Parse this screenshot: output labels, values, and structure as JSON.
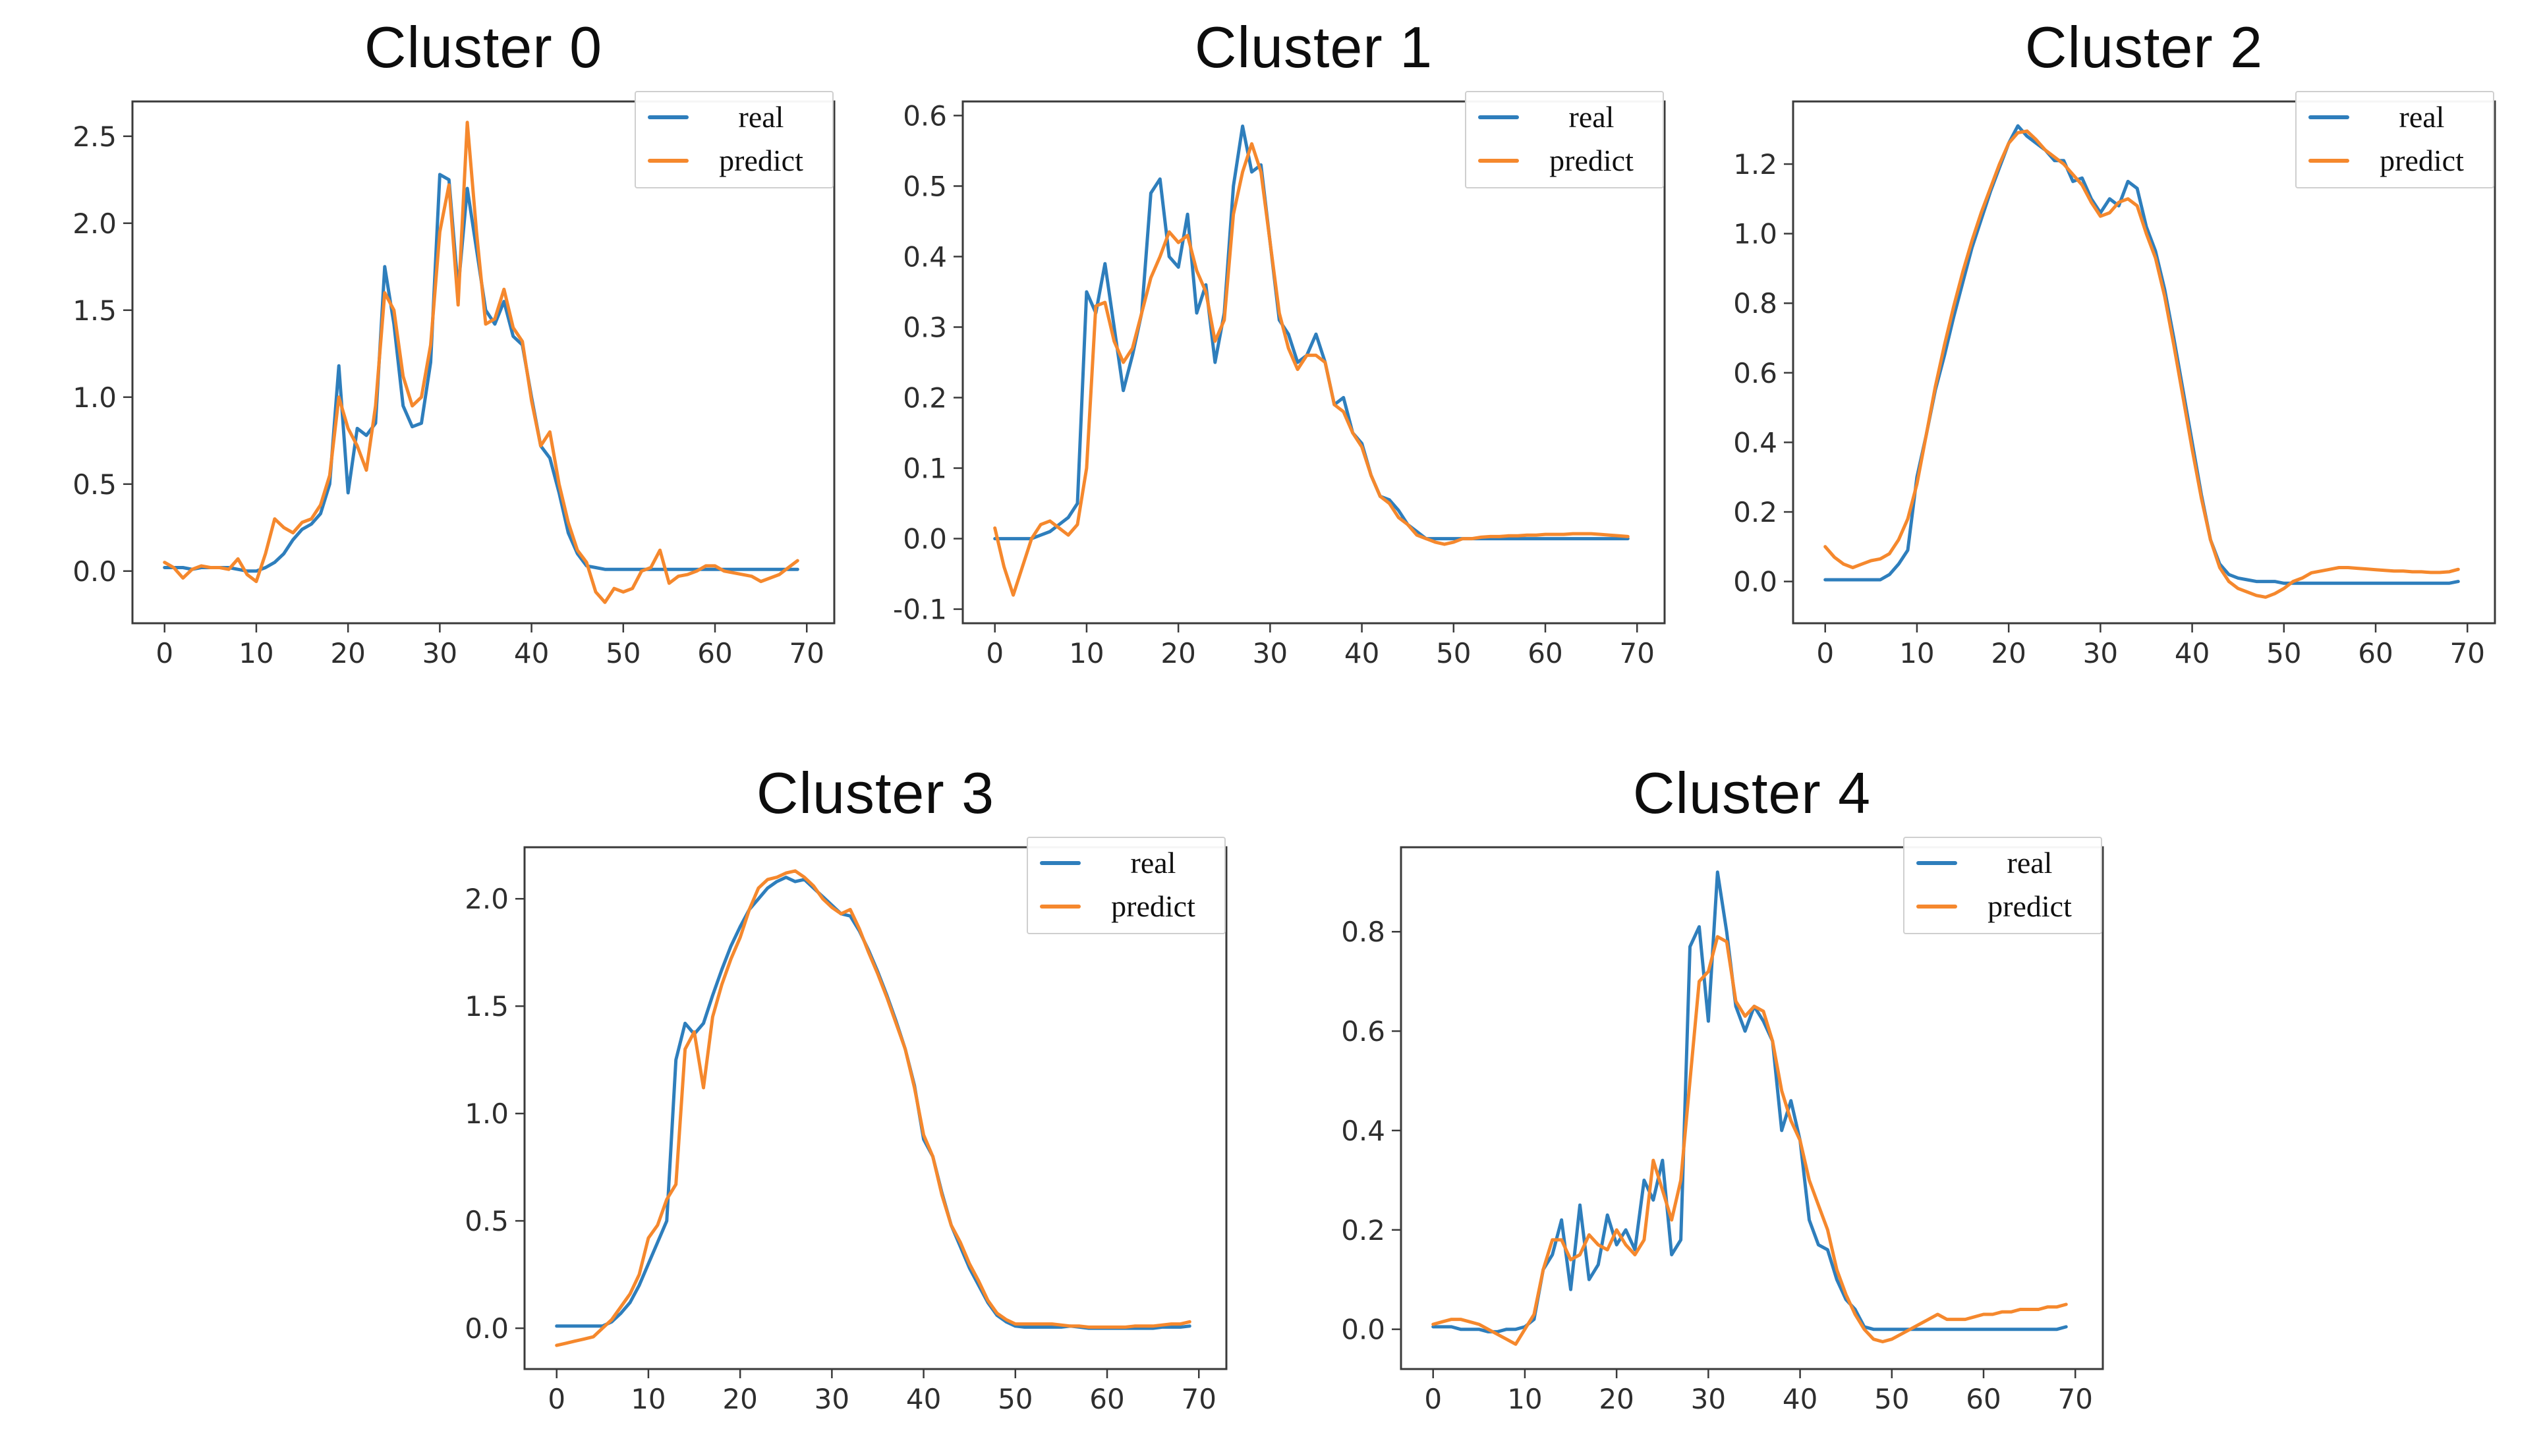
{
  "page": {
    "background": "#ffffff"
  },
  "colors": {
    "real": "#2e7ebc",
    "predict": "#f5882d",
    "axis": "#3a3a3a",
    "tick_text": "#2e2e2e"
  },
  "legend": {
    "position": "upper right",
    "entries": [
      "real",
      "predict"
    ]
  },
  "chart_data": [
    {
      "type": "line",
      "title": "Cluster 0",
      "xlabel": "",
      "ylabel": "",
      "xlim": [
        -3.5,
        73
      ],
      "ylim": [
        -0.3,
        2.7
      ],
      "xticks": [
        0,
        10,
        20,
        30,
        40,
        50,
        60,
        70
      ],
      "xtick_labels": [
        "0",
        "10",
        "20",
        "30",
        "40",
        "50",
        "60",
        "70"
      ],
      "yticks": [
        0.0,
        0.5,
        1.0,
        1.5,
        2.0,
        2.5
      ],
      "ytick_labels": [
        "0.0",
        "0.5",
        "1.0",
        "1.5",
        "2.0",
        "2.5"
      ],
      "grid": false,
      "series": [
        {
          "name": "real",
          "color": "#2e7ebc",
          "values": [
            0.02,
            0.02,
            0.02,
            0.01,
            0.02,
            0.02,
            0.02,
            0.02,
            0.01,
            0.0,
            0.0,
            0.02,
            0.05,
            0.1,
            0.18,
            0.24,
            0.27,
            0.33,
            0.5,
            1.18,
            0.45,
            0.82,
            0.78,
            0.85,
            1.75,
            1.42,
            0.95,
            0.83,
            0.85,
            1.2,
            2.28,
            2.25,
            1.62,
            2.2,
            1.85,
            1.5,
            1.42,
            1.55,
            1.35,
            1.3,
            1.0,
            0.72,
            0.65,
            0.45,
            0.22,
            0.1,
            0.03,
            0.02,
            0.01,
            0.01,
            0.01,
            0.01,
            0.01,
            0.01,
            0.01,
            0.01,
            0.01,
            0.01,
            0.01,
            0.01,
            0.01,
            0.01,
            0.01,
            0.01,
            0.01,
            0.01,
            0.01,
            0.01,
            0.01,
            0.01
          ]
        },
        {
          "name": "predict",
          "color": "#f5882d",
          "values": [
            0.05,
            0.02,
            -0.04,
            0.01,
            0.03,
            0.02,
            0.02,
            0.01,
            0.07,
            -0.02,
            -0.06,
            0.1,
            0.3,
            0.25,
            0.22,
            0.28,
            0.3,
            0.38,
            0.55,
            1.0,
            0.82,
            0.72,
            0.58,
            0.95,
            1.6,
            1.5,
            1.12,
            0.95,
            1.0,
            1.3,
            1.95,
            2.22,
            1.53,
            2.58,
            1.95,
            1.42,
            1.45,
            1.62,
            1.4,
            1.32,
            0.98,
            0.72,
            0.8,
            0.5,
            0.28,
            0.12,
            0.05,
            -0.12,
            -0.18,
            -0.1,
            -0.12,
            -0.1,
            0.0,
            0.02,
            0.12,
            -0.07,
            -0.03,
            -0.02,
            0.0,
            0.03,
            0.03,
            0.0,
            -0.01,
            -0.02,
            -0.03,
            -0.06,
            -0.04,
            -0.02,
            0.02,
            0.06
          ]
        }
      ]
    },
    {
      "type": "line",
      "title": "Cluster 1",
      "xlabel": "",
      "ylabel": "",
      "xlim": [
        -3.5,
        73
      ],
      "ylim": [
        -0.12,
        0.62
      ],
      "xticks": [
        0,
        10,
        20,
        30,
        40,
        50,
        60,
        70
      ],
      "xtick_labels": [
        "0",
        "10",
        "20",
        "30",
        "40",
        "50",
        "60",
        "70"
      ],
      "yticks": [
        -0.1,
        0.0,
        0.1,
        0.2,
        0.3,
        0.4,
        0.5,
        0.6
      ],
      "ytick_labels": [
        "-0.1",
        "0.0",
        "0.1",
        "0.2",
        "0.3",
        "0.4",
        "0.5",
        "0.6"
      ],
      "grid": false,
      "series": [
        {
          "name": "real",
          "color": "#2e7ebc",
          "values": [
            0.0,
            0.0,
            0.0,
            0.0,
            0.0,
            0.005,
            0.01,
            0.02,
            0.03,
            0.05,
            0.35,
            0.32,
            0.39,
            0.3,
            0.21,
            0.26,
            0.32,
            0.49,
            0.51,
            0.4,
            0.385,
            0.46,
            0.32,
            0.36,
            0.25,
            0.32,
            0.5,
            0.585,
            0.52,
            0.53,
            0.42,
            0.31,
            0.29,
            0.25,
            0.26,
            0.29,
            0.25,
            0.19,
            0.2,
            0.15,
            0.135,
            0.09,
            0.06,
            0.055,
            0.04,
            0.02,
            0.01,
            0.0,
            0.0,
            0.0,
            0.0,
            0.0,
            0.0,
            0.0,
            0.0,
            0.0,
            0.0,
            0.0,
            0.0,
            0.0,
            0.0,
            0.0,
            0.0,
            0.0,
            0.0,
            0.0,
            0.0,
            0.0,
            0.0,
            0.0
          ]
        },
        {
          "name": "predict",
          "color": "#f5882d",
          "values": [
            0.015,
            -0.04,
            -0.08,
            -0.04,
            0.0,
            0.02,
            0.025,
            0.015,
            0.005,
            0.02,
            0.1,
            0.33,
            0.335,
            0.28,
            0.25,
            0.27,
            0.32,
            0.37,
            0.4,
            0.435,
            0.42,
            0.43,
            0.38,
            0.35,
            0.28,
            0.31,
            0.46,
            0.52,
            0.56,
            0.52,
            0.42,
            0.32,
            0.27,
            0.24,
            0.26,
            0.26,
            0.25,
            0.19,
            0.18,
            0.15,
            0.13,
            0.09,
            0.06,
            0.05,
            0.03,
            0.02,
            0.005,
            0.0,
            -0.005,
            -0.008,
            -0.005,
            0.0,
            0.0,
            0.002,
            0.003,
            0.003,
            0.004,
            0.004,
            0.005,
            0.005,
            0.006,
            0.006,
            0.006,
            0.007,
            0.007,
            0.007,
            0.006,
            0.005,
            0.004,
            0.003
          ]
        }
      ]
    },
    {
      "type": "line",
      "title": "Cluster 2",
      "xlabel": "",
      "ylabel": "",
      "xlim": [
        -3.5,
        73
      ],
      "ylim": [
        -0.12,
        1.38
      ],
      "xticks": [
        0,
        10,
        20,
        30,
        40,
        50,
        60,
        70
      ],
      "xtick_labels": [
        "0",
        "10",
        "20",
        "30",
        "40",
        "50",
        "60",
        "70"
      ],
      "yticks": [
        0.0,
        0.2,
        0.4,
        0.6,
        0.8,
        1.0,
        1.2
      ],
      "ytick_labels": [
        "0.0",
        "0.2",
        "0.4",
        "0.6",
        "0.8",
        "1.0",
        "1.2"
      ],
      "grid": false,
      "series": [
        {
          "name": "real",
          "color": "#2e7ebc",
          "values": [
            0.005,
            0.005,
            0.005,
            0.005,
            0.005,
            0.005,
            0.005,
            0.02,
            0.05,
            0.09,
            0.3,
            0.42,
            0.55,
            0.65,
            0.76,
            0.86,
            0.96,
            1.04,
            1.12,
            1.19,
            1.26,
            1.31,
            1.28,
            1.26,
            1.24,
            1.21,
            1.21,
            1.15,
            1.16,
            1.1,
            1.06,
            1.1,
            1.08,
            1.15,
            1.13,
            1.02,
            0.95,
            0.84,
            0.7,
            0.55,
            0.4,
            0.25,
            0.12,
            0.05,
            0.02,
            0.01,
            0.005,
            0.0,
            0.0,
            0.0,
            -0.005,
            -0.005,
            -0.005,
            -0.005,
            -0.005,
            -0.005,
            -0.005,
            -0.005,
            -0.005,
            -0.005,
            -0.005,
            -0.005,
            -0.005,
            -0.005,
            -0.005,
            -0.005,
            -0.005,
            -0.005,
            -0.005,
            0.0
          ]
        },
        {
          "name": "predict",
          "color": "#f5882d",
          "values": [
            0.1,
            0.07,
            0.05,
            0.04,
            0.05,
            0.06,
            0.065,
            0.08,
            0.12,
            0.18,
            0.28,
            0.42,
            0.56,
            0.68,
            0.79,
            0.89,
            0.98,
            1.06,
            1.13,
            1.2,
            1.26,
            1.29,
            1.295,
            1.27,
            1.24,
            1.22,
            1.2,
            1.17,
            1.14,
            1.09,
            1.05,
            1.06,
            1.09,
            1.1,
            1.08,
            1.0,
            0.93,
            0.82,
            0.68,
            0.53,
            0.38,
            0.24,
            0.12,
            0.04,
            0.0,
            -0.02,
            -0.03,
            -0.04,
            -0.045,
            -0.035,
            -0.02,
            0.0,
            0.01,
            0.025,
            0.03,
            0.035,
            0.04,
            0.04,
            0.038,
            0.036,
            0.034,
            0.032,
            0.03,
            0.03,
            0.028,
            0.028,
            0.026,
            0.026,
            0.028,
            0.035
          ]
        }
      ]
    },
    {
      "type": "line",
      "title": "Cluster 3",
      "xlabel": "",
      "ylabel": "",
      "xlim": [
        -3.5,
        73
      ],
      "ylim": [
        -0.19,
        2.24
      ],
      "xticks": [
        0,
        10,
        20,
        30,
        40,
        50,
        60,
        70
      ],
      "xtick_labels": [
        "0",
        "10",
        "20",
        "30",
        "40",
        "50",
        "60",
        "70"
      ],
      "yticks": [
        0.0,
        0.5,
        1.0,
        1.5,
        2.0
      ],
      "ytick_labels": [
        "0.0",
        "0.5",
        "1.0",
        "1.5",
        "2.0"
      ],
      "grid": false,
      "series": [
        {
          "name": "real",
          "color": "#2e7ebc",
          "values": [
            0.01,
            0.01,
            0.01,
            0.01,
            0.01,
            0.01,
            0.03,
            0.07,
            0.12,
            0.2,
            0.3,
            0.4,
            0.5,
            1.25,
            1.42,
            1.37,
            1.42,
            1.55,
            1.67,
            1.78,
            1.87,
            1.95,
            2.0,
            2.05,
            2.08,
            2.1,
            2.08,
            2.09,
            2.05,
            2.01,
            1.97,
            1.93,
            1.92,
            1.85,
            1.76,
            1.66,
            1.55,
            1.43,
            1.3,
            1.13,
            0.88,
            0.8,
            0.63,
            0.48,
            0.38,
            0.28,
            0.2,
            0.12,
            0.06,
            0.03,
            0.01,
            0.005,
            0.005,
            0.005,
            0.005,
            0.005,
            0.01,
            0.005,
            0.0,
            0.0,
            0.0,
            0.0,
            0.0,
            0.0,
            0.0,
            0.0,
            0.005,
            0.005,
            0.005,
            0.01
          ]
        },
        {
          "name": "predict",
          "color": "#f5882d",
          "values": [
            -0.08,
            -0.07,
            -0.06,
            -0.05,
            -0.04,
            0.0,
            0.04,
            0.1,
            0.16,
            0.25,
            0.42,
            0.48,
            0.6,
            0.67,
            1.3,
            1.38,
            1.12,
            1.45,
            1.6,
            1.72,
            1.82,
            1.95,
            2.05,
            2.09,
            2.1,
            2.12,
            2.13,
            2.1,
            2.06,
            2.0,
            1.96,
            1.93,
            1.95,
            1.86,
            1.75,
            1.65,
            1.54,
            1.42,
            1.3,
            1.12,
            0.9,
            0.8,
            0.62,
            0.48,
            0.4,
            0.3,
            0.22,
            0.13,
            0.07,
            0.04,
            0.02,
            0.02,
            0.02,
            0.02,
            0.02,
            0.015,
            0.01,
            0.01,
            0.005,
            0.005,
            0.005,
            0.005,
            0.005,
            0.01,
            0.01,
            0.01,
            0.015,
            0.02,
            0.02,
            0.03
          ]
        }
      ]
    },
    {
      "type": "line",
      "title": "Cluster 4",
      "xlabel": "",
      "ylabel": "",
      "xlim": [
        -3.5,
        73
      ],
      "ylim": [
        -0.08,
        0.97
      ],
      "xticks": [
        0,
        10,
        20,
        30,
        40,
        50,
        60,
        70
      ],
      "xtick_labels": [
        "0",
        "10",
        "20",
        "30",
        "40",
        "50",
        "60",
        "70"
      ],
      "yticks": [
        0.0,
        0.2,
        0.4,
        0.6,
        0.8
      ],
      "ytick_labels": [
        "0.0",
        "0.2",
        "0.4",
        "0.6",
        "0.8"
      ],
      "grid": false,
      "series": [
        {
          "name": "real",
          "color": "#2e7ebc",
          "values": [
            0.005,
            0.005,
            0.005,
            0.0,
            0.0,
            0.0,
            -0.005,
            -0.005,
            0.0,
            0.0,
            0.005,
            0.02,
            0.12,
            0.15,
            0.22,
            0.08,
            0.25,
            0.1,
            0.13,
            0.23,
            0.17,
            0.2,
            0.16,
            0.3,
            0.26,
            0.34,
            0.15,
            0.18,
            0.77,
            0.81,
            0.62,
            0.92,
            0.8,
            0.65,
            0.6,
            0.65,
            0.62,
            0.58,
            0.4,
            0.46,
            0.38,
            0.22,
            0.17,
            0.16,
            0.1,
            0.06,
            0.04,
            0.005,
            0.0,
            0.0,
            0.0,
            0.0,
            0.0,
            0.0,
            0.0,
            0.0,
            0.0,
            0.0,
            0.0,
            0.0,
            0.0,
            0.0,
            0.0,
            0.0,
            0.0,
            0.0,
            0.0,
            0.0,
            0.0,
            0.005
          ]
        },
        {
          "name": "predict",
          "color": "#f5882d",
          "values": [
            0.01,
            0.015,
            0.02,
            0.02,
            0.015,
            0.01,
            0.0,
            -0.01,
            -0.02,
            -0.03,
            0.0,
            0.03,
            0.12,
            0.18,
            0.18,
            0.14,
            0.15,
            0.19,
            0.17,
            0.16,
            0.2,
            0.17,
            0.15,
            0.18,
            0.34,
            0.28,
            0.22,
            0.3,
            0.5,
            0.7,
            0.72,
            0.79,
            0.78,
            0.66,
            0.63,
            0.65,
            0.64,
            0.58,
            0.48,
            0.42,
            0.38,
            0.3,
            0.25,
            0.2,
            0.12,
            0.07,
            0.03,
            0.0,
            -0.02,
            -0.025,
            -0.02,
            -0.01,
            0.0,
            0.01,
            0.02,
            0.03,
            0.02,
            0.02,
            0.02,
            0.025,
            0.03,
            0.03,
            0.035,
            0.035,
            0.04,
            0.04,
            0.04,
            0.045,
            0.045,
            0.05
          ]
        }
      ]
    }
  ]
}
